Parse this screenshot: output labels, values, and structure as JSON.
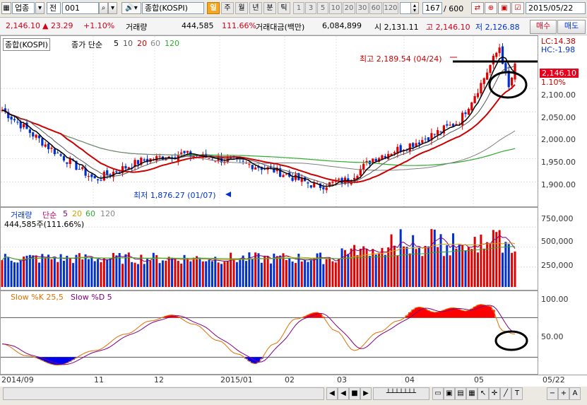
{
  "toolbar": {
    "market": "업종",
    "prev": "전",
    "code": "001",
    "name": "종합(KOSPI)",
    "periods": [
      "일",
      "주",
      "월",
      "년",
      "분",
      "틱"
    ],
    "active_period": "일",
    "ticks": [
      "1",
      "3",
      "5",
      "10",
      "20",
      "30",
      "60",
      "120"
    ],
    "count": "167",
    "total": "/ 600",
    "date": "2015/05/22"
  },
  "quote": {
    "price": "2,146.10",
    "change": "▲ 23.29",
    "rate": "+1.10%",
    "vol_label": "거래량",
    "volume": "444,585",
    "vol_rate": "111.66%",
    "amt_label": "거래대금(백만)",
    "amount": "6,084,899",
    "open": "시 2,131.11",
    "high": "고 2,146.10",
    "low": "저 2,126.88",
    "buy": "매수",
    "sell": "매도"
  },
  "price_panel": {
    "title": "종합(KOSPI)",
    "ma_label": "종가 단순",
    "ma_periods": [
      "5",
      "10",
      "20",
      "60",
      "120"
    ],
    "ma_colors": [
      "#000000",
      "#555555",
      "#cc0000",
      "#2eab2e",
      "#808080"
    ],
    "max_label": "최고 2,189.54 (04/24)",
    "min_label": "최저 1,876.27 (01/07)",
    "lc": "LC:14.38",
    "hc": "HC:-1.98",
    "last": "2,146.10",
    "last_rate": "1.10%",
    "yticks": [
      "2,100.00",
      "2,050.00",
      "2,000.00",
      "1,950.00",
      "1,900.00"
    ]
  },
  "volume_panel": {
    "title": "거래량",
    "ma_label": "단순",
    "ma_periods": [
      "5",
      "20",
      "60",
      "120"
    ],
    "last": "444,585주(111.66%)",
    "yticks": [
      "750,000",
      "500,000",
      "250,000"
    ]
  },
  "stoch_panel": {
    "label_k": "Slow %K 25,5",
    "label_d": "Slow %D 5",
    "yticks": [
      "100.00",
      "50.00"
    ]
  },
  "xaxis": [
    "2014/09",
    "11",
    "12",
    "2015/01",
    "02",
    "03",
    "04",
    "05",
    "05/22"
  ],
  "chart_data": [
    {
      "type": "candlestick",
      "title": "종합(KOSPI)",
      "ylim": [
        1860,
        2200
      ],
      "points": [
        [
          "2014/09",
          2054
        ],
        [
          "2014/10",
          1930
        ],
        [
          "2014/10 late",
          1905
        ],
        [
          "2014/11",
          1965
        ],
        [
          "2014/12",
          1920
        ],
        [
          "2014/12 late",
          1910
        ],
        [
          "2015/01/07",
          1876.27
        ],
        [
          "2015/01",
          1905
        ],
        [
          "2015/02",
          1950
        ],
        [
          "2015/03",
          2015
        ],
        [
          "2015/03 late",
          2040
        ],
        [
          "2015/04",
          2110
        ],
        [
          "2015/04/24",
          2189.54
        ],
        [
          "2015/05",
          2080
        ],
        [
          "2015/05/22",
          2146.1
        ]
      ]
    },
    {
      "type": "bar",
      "title": "거래량",
      "ylim": [
        0,
        850000
      ],
      "last": 444585
    },
    {
      "type": "line",
      "title": "Slow %K 25,5 / Slow %D 5",
      "ylim": [
        0,
        110
      ],
      "hlines": [
        80,
        20
      ]
    }
  ]
}
